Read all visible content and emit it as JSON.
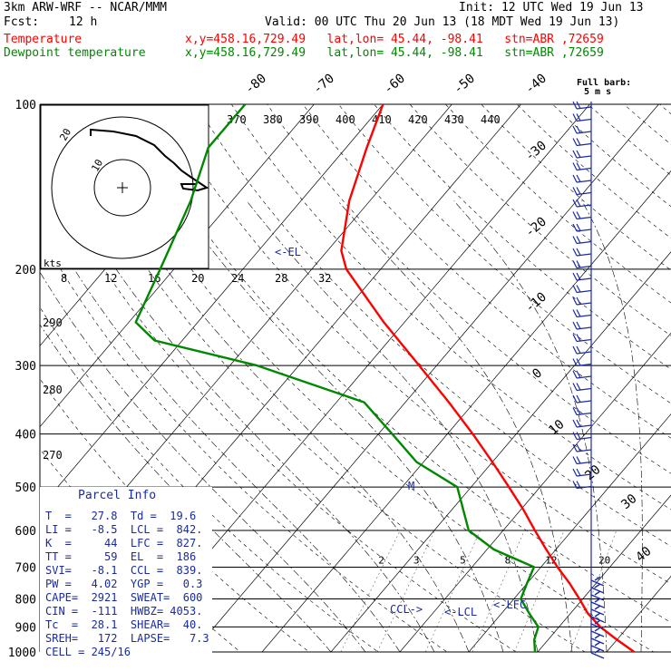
{
  "header": {
    "model": "3km ARW-WRF -- NCAR/MMM",
    "init": "Init: 12 UTC Wed 19 Jun 13",
    "fcst_label": "Fcst:",
    "fcst_value": "12 h",
    "valid": "Valid: 00 UTC Thu 20 Jun 13 (18 MDT Wed 19 Jun 13)",
    "temp_label": "Temperature",
    "temp_info": "x,y=458.16,729.49   lat,lon= 45.44, -98.41   stn=ABR ,72659",
    "dew_label": "Dewpoint temperature",
    "dew_info": "x,y=458.16,729.49   lat,lon= 45.44, -98.41   stn=ABR ,72659"
  },
  "full_barb": "Full barb:",
  "full_barb_units": "5 m s",
  "colors": {
    "temp": "#ff0000",
    "dew": "#008800",
    "info": "#1a2ba0"
  },
  "chart_data": {
    "type": "line",
    "pressure_levels": [
      "100",
      "200",
      "300",
      "400",
      "500",
      "600",
      "700",
      "800",
      "900",
      "1000"
    ],
    "isotherm_labels": [
      "-80",
      "-70",
      "-60",
      "-50",
      "-40",
      "-30",
      "-20",
      "-10",
      "0",
      "10",
      "20",
      "30",
      "40"
    ],
    "theta_e_labels": [
      "370",
      "380",
      "390",
      "400",
      "410",
      "420",
      "430",
      "440"
    ],
    "dry_adiabat_labels": [
      "290",
      "280",
      "270"
    ],
    "mixing_ratio_labels": [
      "2",
      "3",
      "5",
      "8",
      "12",
      "20"
    ],
    "hodograph": {
      "unit_label": "kts",
      "speed_labels": [
        "8",
        "12",
        "16",
        "20",
        "24",
        "28",
        "32"
      ],
      "ring_labels": [
        "20",
        "10"
      ]
    },
    "series": [
      {
        "name": "Temperature",
        "points": [
          [
            1000,
            34.0
          ],
          [
            950,
            30.0
          ],
          [
            900,
            26.0
          ],
          [
            850,
            22.5
          ],
          [
            800,
            19.5
          ],
          [
            750,
            16.2
          ],
          [
            700,
            12.4
          ],
          [
            650,
            8.6
          ],
          [
            600,
            4.6
          ],
          [
            550,
            0.4
          ],
          [
            500,
            -4.5
          ],
          [
            450,
            -10.0
          ],
          [
            400,
            -16.3
          ],
          [
            350,
            -23.7
          ],
          [
            300,
            -32.5
          ],
          [
            250,
            -43.0
          ],
          [
            200,
            -55.0
          ],
          [
            185,
            -58.0
          ],
          [
            150,
            -63.0
          ],
          [
            120,
            -67.0
          ],
          [
            100,
            -70.0
          ]
        ]
      },
      {
        "name": "Dewpoint temperature",
        "points": [
          [
            1000,
            19.6
          ],
          [
            950,
            18.0
          ],
          [
            900,
            17.0
          ],
          [
            850,
            14.0
          ],
          [
            800,
            11.0
          ],
          [
            750,
            10.0
          ],
          [
            700,
            9.0
          ],
          [
            650,
            1.0
          ],
          [
            600,
            -5.0
          ],
          [
            500,
            -12.0
          ],
          [
            450,
            -21.0
          ],
          [
            400,
            -28.0
          ],
          [
            350,
            -36.0
          ],
          [
            300,
            -56.0
          ],
          [
            270,
            -74.0
          ],
          [
            250,
            -79.0
          ],
          [
            200,
            -82.0
          ],
          [
            150,
            -86.0
          ],
          [
            120,
            -90.0
          ],
          [
            100,
            -90.0
          ]
        ]
      }
    ],
    "annotations": [
      "<-EL",
      "CCL->",
      "<-LCL",
      "<-LFC"
    ]
  },
  "parcel_info": {
    "title": "Parcel Info",
    "rows": [
      "T  =   27.8  Td =  19.6",
      "LI =   -8.5  LCL =  842.",
      "K  =     44  LFC =  827.",
      "TT =     59  EL  =  186",
      "SVI=   -8.1  CCL =  839.",
      "PW =   4.02  YGP =   0.3",
      "CAPE=  2921  SWEAT=  600",
      "CIN =  -111  HWBZ= 4053.",
      "Tc  =  28.1  SHEAR=  40.",
      "SREH=   172  LAPSE=   7.3",
      "CELL = 245/16"
    ]
  }
}
